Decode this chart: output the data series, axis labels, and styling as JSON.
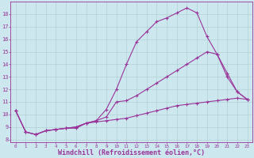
{
  "xlabel": "Windchill (Refroidissement éolien,°C)",
  "bg_color": "#cce8ee",
  "grid_color": "#aacccc",
  "line_color": "#993399",
  "xlim": [
    -0.5,
    23.5
  ],
  "ylim": [
    7.8,
    19.0
  ],
  "xticks": [
    0,
    1,
    2,
    3,
    4,
    5,
    6,
    7,
    8,
    9,
    10,
    11,
    12,
    13,
    14,
    15,
    16,
    17,
    18,
    19,
    20,
    21,
    22,
    23
  ],
  "yticks": [
    8,
    9,
    10,
    11,
    12,
    13,
    14,
    15,
    16,
    17,
    18
  ],
  "curve1_x": [
    0,
    1,
    2,
    3,
    4,
    5,
    6,
    7,
    8,
    9,
    10,
    11,
    12,
    13,
    14,
    15,
    16,
    17,
    18,
    19,
    20,
    21,
    22,
    23
  ],
  "curve1_y": [
    10.3,
    8.6,
    8.4,
    8.7,
    8.8,
    8.9,
    8.9,
    9.3,
    9.5,
    10.4,
    12.0,
    14.0,
    15.8,
    16.6,
    17.4,
    17.7,
    18.1,
    18.5,
    18.1,
    16.2,
    14.8,
    13.0,
    11.8,
    11.2
  ],
  "curve2_x": [
    0,
    1,
    2,
    3,
    4,
    5,
    6,
    7,
    8,
    9,
    10,
    11,
    12,
    13,
    14,
    15,
    16,
    17,
    18,
    19,
    20,
    21,
    22,
    23
  ],
  "curve2_y": [
    10.3,
    8.6,
    8.4,
    8.7,
    8.8,
    8.9,
    9.0,
    9.3,
    9.5,
    9.8,
    11.0,
    11.1,
    11.5,
    12.0,
    12.5,
    13.0,
    13.5,
    14.0,
    14.5,
    15.0,
    14.8,
    13.3,
    11.8,
    11.2
  ],
  "curve3_x": [
    0,
    1,
    2,
    3,
    4,
    5,
    6,
    7,
    8,
    9,
    10,
    11,
    12,
    13,
    14,
    15,
    16,
    17,
    18,
    19,
    20,
    21,
    22,
    23
  ],
  "curve3_y": [
    10.3,
    8.6,
    8.4,
    8.7,
    8.8,
    8.9,
    9.0,
    9.3,
    9.4,
    9.5,
    9.6,
    9.7,
    9.9,
    10.1,
    10.3,
    10.5,
    10.7,
    10.8,
    10.9,
    11.0,
    11.1,
    11.2,
    11.3,
    11.2
  ],
  "marker": "+",
  "markersize": 3,
  "linewidth": 0.8,
  "tick_fontsize": 5.0,
  "xlabel_fontsize": 6.0
}
